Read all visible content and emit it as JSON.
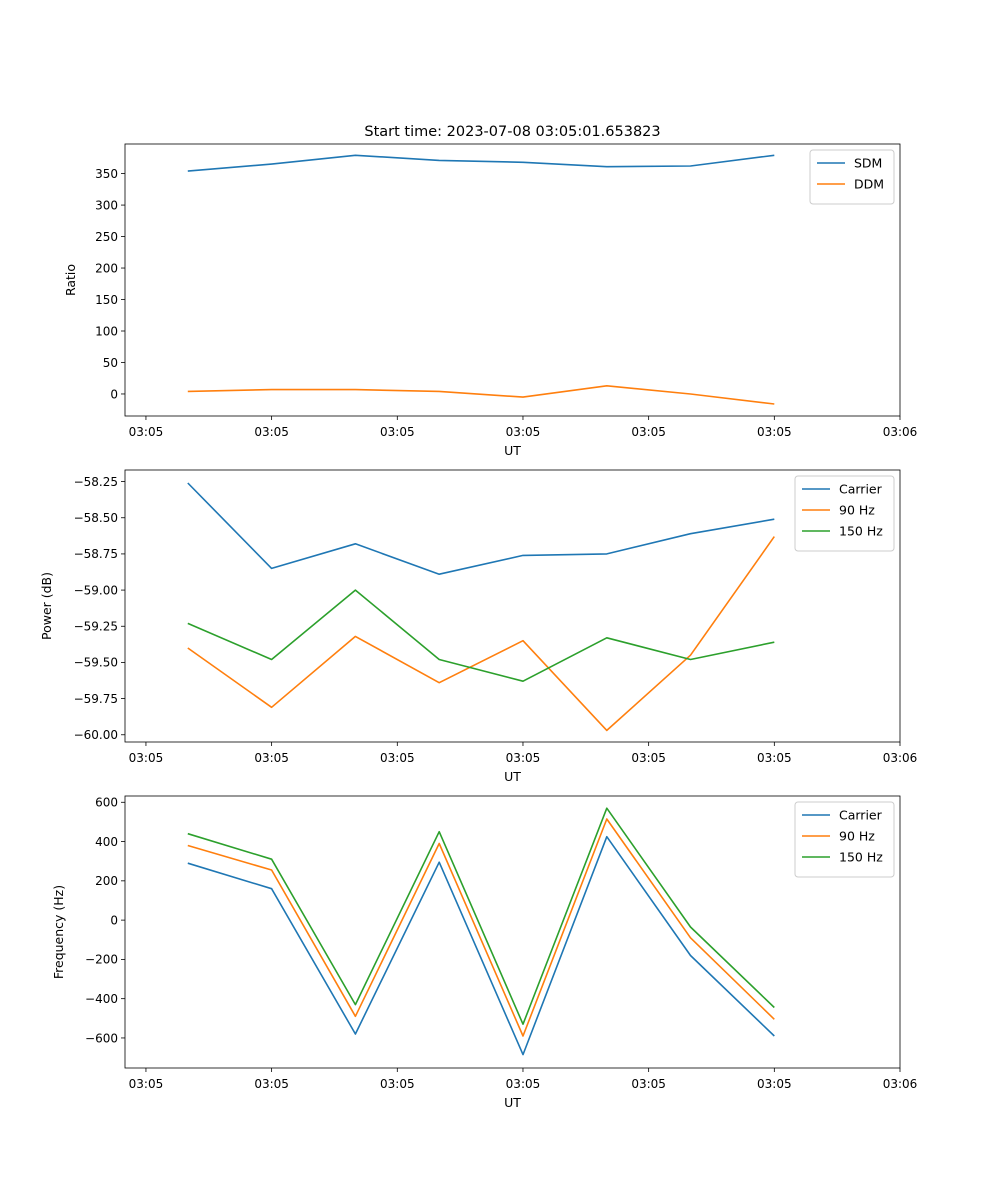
{
  "chart_data": [
    {
      "type": "line",
      "title": "Start time: 2023-07-08 03:05:01.653823",
      "xlabel": "UT",
      "ylabel": "Ratio",
      "xlim": [
        -0.75,
        8.5
      ],
      "ylim": [
        -35,
        397
      ],
      "x_ticks": [
        -0.5,
        1.0,
        2.5,
        4.0,
        5.5,
        7.0,
        8.5
      ],
      "x_tick_labels": [
        "03:05",
        "03:05",
        "03:05",
        "03:05",
        "03:05",
        "03:05",
        "03:06"
      ],
      "y_ticks": [
        0,
        50,
        100,
        150,
        200,
        250,
        300,
        350
      ],
      "y_tick_labels": [
        "0",
        "50",
        "100",
        "150",
        "200",
        "250",
        "300",
        "350"
      ],
      "legend": "top-right",
      "x": [
        0,
        1,
        2,
        3,
        4,
        5,
        6,
        7
      ],
      "series": [
        {
          "name": "SDM",
          "color": "#1f77b4",
          "values": [
            354,
            365,
            379,
            371,
            368,
            361,
            362,
            379
          ]
        },
        {
          "name": "DDM",
          "color": "#ff7f0e",
          "values": [
            4,
            7,
            7,
            4,
            -5,
            13,
            0,
            -16
          ]
        }
      ]
    },
    {
      "type": "line",
      "title": "",
      "xlabel": "UT",
      "ylabel": "Power (dB)",
      "xlim": [
        -0.75,
        8.5
      ],
      "ylim": [
        -60.05,
        -58.17
      ],
      "x_ticks": [
        -0.5,
        1.0,
        2.5,
        4.0,
        5.5,
        7.0,
        8.5
      ],
      "x_tick_labels": [
        "03:05",
        "03:05",
        "03:05",
        "03:05",
        "03:05",
        "03:05",
        "03:06"
      ],
      "y_ticks": [
        -60.0,
        -59.75,
        -59.5,
        -59.25,
        -59.0,
        -58.75,
        -58.5,
        -58.25
      ],
      "y_tick_labels": [
        "−60.00",
        "−59.75",
        "−59.50",
        "−59.25",
        "−59.00",
        "−58.75",
        "−58.50",
        "−58.25"
      ],
      "legend": "top-right",
      "x": [
        0,
        1,
        2,
        3,
        4,
        5,
        6,
        7
      ],
      "series": [
        {
          "name": "Carrier",
          "color": "#1f77b4",
          "values": [
            -58.26,
            -58.85,
            -58.68,
            -58.89,
            -58.76,
            -58.75,
            -58.61,
            -58.51
          ]
        },
        {
          "name": "90 Hz",
          "color": "#ff7f0e",
          "values": [
            -59.4,
            -59.81,
            -59.32,
            -59.64,
            -59.35,
            -59.97,
            -59.45,
            -58.63
          ]
        },
        {
          "name": "150 Hz",
          "color": "#2ca02c",
          "values": [
            -59.23,
            -59.48,
            -59.0,
            -59.48,
            -59.63,
            -59.33,
            -59.48,
            -59.36
          ]
        }
      ]
    },
    {
      "type": "line",
      "title": "",
      "xlabel": "UT",
      "ylabel": "Frequency (Hz)",
      "xlim": [
        -0.75,
        8.5
      ],
      "ylim": [
        -753,
        632
      ],
      "x_ticks": [
        -0.5,
        1.0,
        2.5,
        4.0,
        5.5,
        7.0,
        8.5
      ],
      "x_tick_labels": [
        "03:05",
        "03:05",
        "03:05",
        "03:05",
        "03:05",
        "03:05",
        "03:06"
      ],
      "y_ticks": [
        -600,
        -400,
        -200,
        0,
        200,
        400,
        600
      ],
      "y_tick_labels": [
        "−600",
        "−400",
        "−200",
        "0",
        "200",
        "400",
        "600"
      ],
      "legend": "top-right",
      "x": [
        0,
        1,
        2,
        3,
        4,
        5,
        6,
        7
      ],
      "series": [
        {
          "name": "Carrier",
          "color": "#1f77b4",
          "values": [
            290,
            160,
            -580,
            295,
            -685,
            425,
            -180,
            -590
          ]
        },
        {
          "name": "90 Hz",
          "color": "#ff7f0e",
          "values": [
            380,
            255,
            -490,
            390,
            -590,
            515,
            -90,
            -505
          ]
        },
        {
          "name": "150 Hz",
          "color": "#2ca02c",
          "values": [
            440,
            310,
            -430,
            450,
            -530,
            570,
            -35,
            -445
          ]
        }
      ]
    }
  ]
}
